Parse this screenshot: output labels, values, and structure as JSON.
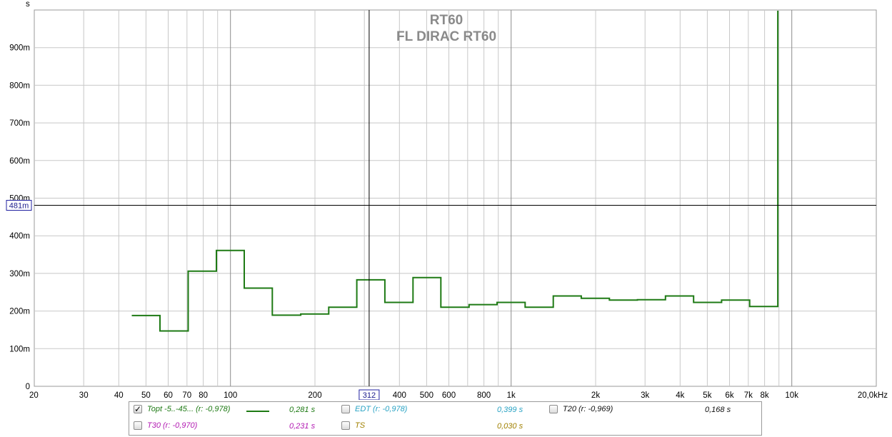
{
  "chart_data": {
    "type": "line",
    "title": "RT60",
    "subtitle": "FL DIRAC RT60",
    "ylabel": "s",
    "y_unit": "s",
    "xlabel": "Hz",
    "x_scale": "log",
    "xlim": [
      20,
      20000
    ],
    "ylim": [
      0,
      1.0
    ],
    "grid": true,
    "y_ticks": [
      {
        "value": 0,
        "label": "0"
      },
      {
        "value": 0.1,
        "label": "100m"
      },
      {
        "value": 0.2,
        "label": "200m"
      },
      {
        "value": 0.3,
        "label": "300m"
      },
      {
        "value": 0.4,
        "label": "400m"
      },
      {
        "value": 0.5,
        "label": "500m"
      },
      {
        "value": 0.6,
        "label": "600m"
      },
      {
        "value": 0.7,
        "label": "700m"
      },
      {
        "value": 0.8,
        "label": "800m"
      },
      {
        "value": 0.9,
        "label": "900m"
      }
    ],
    "x_ticks": [
      {
        "value": 20,
        "label": "20"
      },
      {
        "value": 30,
        "label": "30"
      },
      {
        "value": 40,
        "label": "40"
      },
      {
        "value": 50,
        "label": "50"
      },
      {
        "value": 60,
        "label": "60"
      },
      {
        "value": 70,
        "label": "70"
      },
      {
        "value": 80,
        "label": "80"
      },
      {
        "value": 100,
        "label": "100"
      },
      {
        "value": 200,
        "label": "200"
      },
      {
        "value": 400,
        "label": "400"
      },
      {
        "value": 500,
        "label": "500"
      },
      {
        "value": 600,
        "label": "600"
      },
      {
        "value": 800,
        "label": "800"
      },
      {
        "value": 1000,
        "label": "1k"
      },
      {
        "value": 2000,
        "label": "2k"
      },
      {
        "value": 3000,
        "label": "3k"
      },
      {
        "value": 4000,
        "label": "4k"
      },
      {
        "value": 5000,
        "label": "5k"
      },
      {
        "value": 6000,
        "label": "6k"
      },
      {
        "value": 7000,
        "label": "7k"
      },
      {
        "value": 8000,
        "label": "8k"
      },
      {
        "value": 10000,
        "label": "10k"
      },
      {
        "value": 20000,
        "label": "20,0kHz"
      }
    ],
    "x_minor_gridlines": [
      90,
      300,
      700,
      900,
      9000
    ],
    "cursor": {
      "x": 312,
      "x_label": "312",
      "y": 0.481,
      "y_label": "481m"
    },
    "series": [
      {
        "name": "Topt -5..-45... (r: -0,978)",
        "color": "#1e7a14",
        "bands": [
          {
            "from": 44.5,
            "to": 56.1,
            "value": 0.188
          },
          {
            "from": 56.1,
            "to": 70.7,
            "value": 0.147
          },
          {
            "from": 70.7,
            "to": 89.1,
            "value": 0.306
          },
          {
            "from": 89.1,
            "to": 112,
            "value": 0.361
          },
          {
            "from": 112,
            "to": 141,
            "value": 0.261
          },
          {
            "from": 141,
            "to": 178,
            "value": 0.189
          },
          {
            "from": 178,
            "to": 224,
            "value": 0.192
          },
          {
            "from": 224,
            "to": 282,
            "value": 0.21
          },
          {
            "from": 282,
            "to": 355,
            "value": 0.283
          },
          {
            "from": 355,
            "to": 447,
            "value": 0.223
          },
          {
            "from": 447,
            "to": 562,
            "value": 0.289
          },
          {
            "from": 562,
            "to": 708,
            "value": 0.21
          },
          {
            "from": 708,
            "to": 891,
            "value": 0.217
          },
          {
            "from": 891,
            "to": 1122,
            "value": 0.223
          },
          {
            "from": 1122,
            "to": 1413,
            "value": 0.21
          },
          {
            "from": 1413,
            "to": 1778,
            "value": 0.24
          },
          {
            "from": 1778,
            "to": 2239,
            "value": 0.234
          },
          {
            "from": 2239,
            "to": 2818,
            "value": 0.229
          },
          {
            "from": 2818,
            "to": 3548,
            "value": 0.23
          },
          {
            "from": 3548,
            "to": 4467,
            "value": 0.24
          },
          {
            "from": 4467,
            "to": 5623,
            "value": 0.223
          },
          {
            "from": 5623,
            "to": 7079,
            "value": 0.229
          },
          {
            "from": 7079,
            "to": 8913,
            "value": 0.212
          },
          {
            "from": 8913,
            "to": 8913,
            "value": 1.0
          }
        ]
      }
    ]
  },
  "legend": {
    "rows": [
      [
        {
          "label": "Topt -5..-45... (r: -0,978)",
          "value": "0,281 s",
          "checked": true,
          "color": "#1e7a14",
          "swatch": true
        },
        {
          "label": "EDT (r: -0,978)",
          "value": "0,399 s",
          "checked": false,
          "color": "#2aa3c4",
          "swatch": false
        },
        {
          "label": "T20 (r: -0,969)",
          "value": "0,168 s",
          "checked": false,
          "color": "#111111",
          "swatch": false
        }
      ],
      [
        {
          "label": "T30 (r: -0,970)",
          "value": "0,231 s",
          "checked": false,
          "color": "#b21ab2",
          "swatch": false
        },
        {
          "label": "TS",
          "value": "0,030 s",
          "checked": false,
          "color": "#a08000",
          "swatch": false
        }
      ]
    ]
  }
}
